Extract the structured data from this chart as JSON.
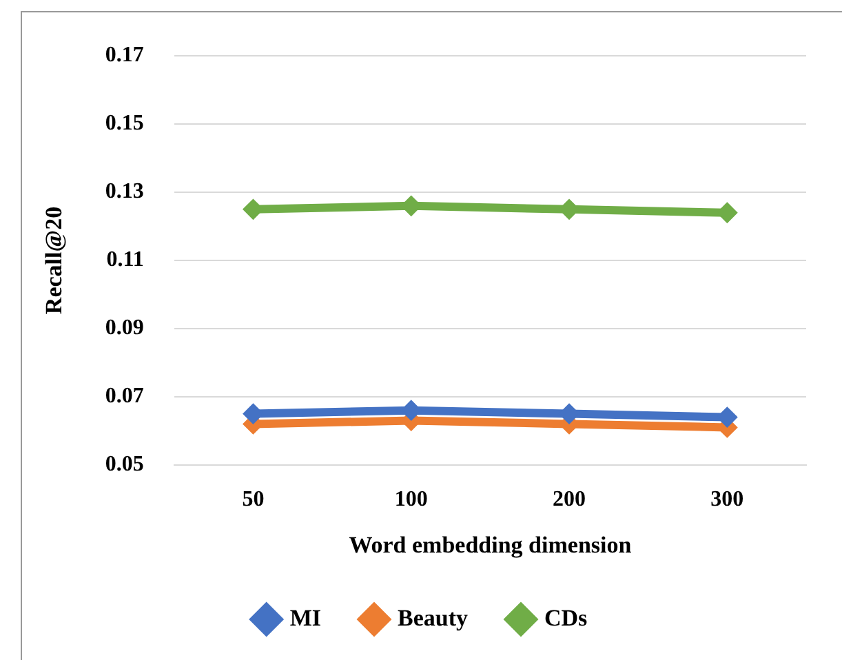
{
  "chart_data": {
    "type": "line",
    "xlabel": "Word embedding dimension",
    "ylabel": "Recall@20",
    "categories": [
      "50",
      "100",
      "200",
      "300"
    ],
    "series": [
      {
        "name": "MI",
        "color": "#4472c4",
        "values": [
          0.065,
          0.066,
          0.065,
          0.064
        ]
      },
      {
        "name": "Beauty",
        "color": "#ed7d31",
        "values": [
          0.062,
          0.063,
          0.062,
          0.061
        ]
      },
      {
        "name": "CDs",
        "color": "#70ad47",
        "values": [
          0.125,
          0.126,
          0.125,
          0.124
        ]
      }
    ],
    "ylim": [
      0.05,
      0.17
    ],
    "yticks": [
      0.05,
      0.07,
      0.09,
      0.11,
      0.13,
      0.15,
      0.17
    ],
    "grid": "y",
    "legend": "bottom",
    "marker": "diamond",
    "line_style": "solid"
  }
}
